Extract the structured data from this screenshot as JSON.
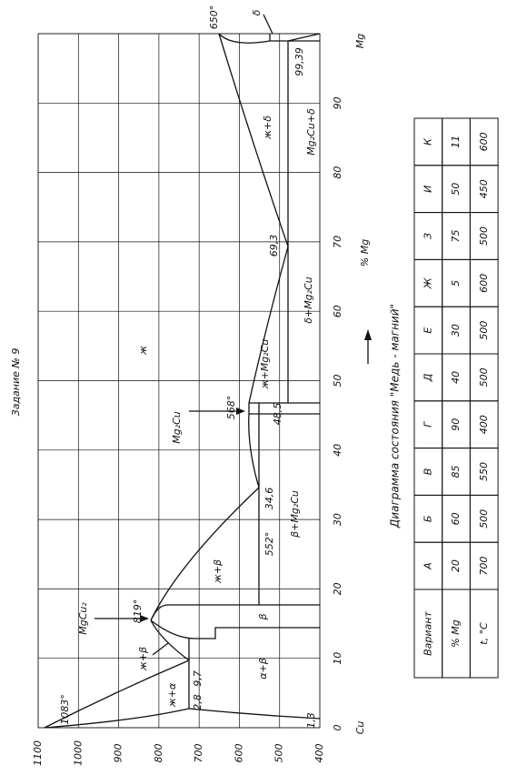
{
  "header": {
    "title": "Задание № 9"
  },
  "caption": "Диаграмма состояния \"Медь - магний\"",
  "axes": {
    "t_ticks": [
      "1100",
      "1000",
      "900",
      "800",
      "700",
      "600",
      "500",
      "400"
    ],
    "mg_ticks": [
      "0",
      "10",
      "20",
      "30",
      "40",
      "50",
      "60",
      "70",
      "80",
      "90"
    ],
    "left_element": "Cu",
    "right_element": "Mg",
    "x_label": "% Mg"
  },
  "labels": {
    "cu_melt": "1083°",
    "alpha_eut": "2,8",
    "eut1": "9,7",
    "alpha_low": "1,3",
    "liq_alpha": "ж+α",
    "alpha_beta": "α+β",
    "liq_beta_1": "ж+β",
    "peak": "819°",
    "mgcu2": "MgCu₂",
    "beta": "β",
    "liq_beta_2": "ж+β",
    "eut2_t": "552°",
    "eut2": "34,6",
    "beta_mg2cu": "β+Mg₂Cu",
    "liquid": "ж",
    "mg2cu": "Mg₂Cu",
    "mg2cu_t": "568°",
    "liq_mg2cu": "ж+Mg₂Cu",
    "mg2cu_comp": "48,5",
    "delta_mg2cu": "δ+Mg₂Cu",
    "eut3": "69,3",
    "liq_delta": "ж+δ",
    "mg2cu_delta": "Mg₂Cu+δ",
    "delta_sol": "99,39",
    "mg_melt": "650°",
    "delta": "δ"
  },
  "table": {
    "rows": [
      [
        "Вариант",
        "А",
        "Б",
        "В",
        "Г",
        "Д",
        "Е",
        "Ж",
        "З",
        "И",
        "К"
      ],
      [
        "% Mg",
        20,
        60,
        85,
        90,
        40,
        30,
        5,
        75,
        50,
        11
      ],
      [
        "t, °C",
        700,
        500,
        550,
        400,
        500,
        500,
        600,
        500,
        450,
        600
      ]
    ]
  }
}
